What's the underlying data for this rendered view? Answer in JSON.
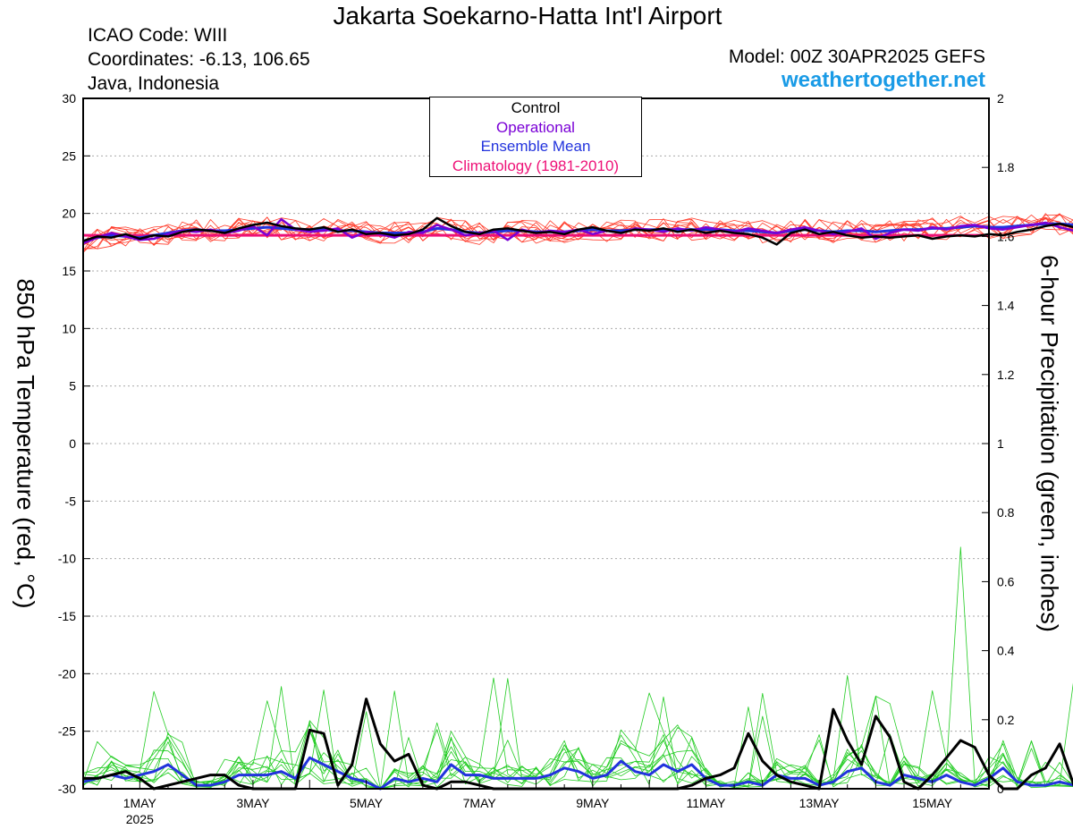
{
  "header": {
    "title": "Jakarta Soekarno-Hatta Int'l Airport",
    "icao": "ICAO Code: WIII",
    "coordinates": "Coordinates: -6.13, 106.65",
    "region": "Java, Indonesia",
    "model": "Model: 00Z 30APR2025 GEFS",
    "site": "weathertogether.net"
  },
  "colors": {
    "control": "#000000",
    "operational": "#7a00d6",
    "ensemble_mean": "#2233dd",
    "climatology": "#ee1177",
    "members_temp": "#ff3b2a",
    "members_precip": "#22cc22",
    "site": "#1a9be6"
  },
  "chart_data": {
    "type": "line",
    "ylabel": "850 hPa Temperature (red, °C)",
    "y2label": "6-hour Precipitation (green, inches)",
    "legend": {
      "placement": "top-center",
      "entries": [
        "Control",
        "Operational",
        "Ensemble Mean",
        "Climatology (1981-2010)"
      ]
    },
    "ylim": [
      -30,
      30
    ],
    "y2lim": [
      0,
      2
    ],
    "yticks": [
      30,
      25,
      20,
      15,
      10,
      5,
      0,
      -5,
      -10,
      -15,
      -20,
      -25,
      -30
    ],
    "y2ticks": [
      2,
      1.8,
      1.6,
      1.4,
      1.2,
      1,
      0.8,
      0.6,
      0.4,
      0.2,
      0
    ],
    "xlim_hours": [
      0,
      384
    ],
    "x_step_hours": 6,
    "grid": "horizontal dotted",
    "xticks": [
      {
        "label": "1MAY",
        "sub": "2025",
        "hour": 24
      },
      {
        "label": "3MAY",
        "sub": "",
        "hour": 72
      },
      {
        "label": "5MAY",
        "sub": "",
        "hour": 120
      },
      {
        "label": "7MAY",
        "sub": "",
        "hour": 168
      },
      {
        "label": "9MAY",
        "sub": "",
        "hour": 216
      },
      {
        "label": "11MAY",
        "sub": "",
        "hour": 264
      },
      {
        "label": "13MAY",
        "sub": "",
        "hour": 312
      },
      {
        "label": "15MAY",
        "sub": "",
        "hour": 360
      }
    ],
    "climatology_temp": 18.1,
    "control_temp": [
      17.6,
      18.0,
      17.9,
      18.2,
      17.8,
      18.1,
      18.0,
      18.4,
      18.6,
      18.5,
      18.3,
      18.7,
      19.0,
      19.2,
      18.9,
      18.7,
      18.6,
      18.8,
      18.4,
      18.6,
      18.2,
      18.3,
      18.1,
      18.2,
      18.6,
      19.6,
      18.9,
      18.4,
      18.2,
      18.6,
      18.7,
      18.5,
      18.3,
      18.4,
      18.2,
      18.6,
      18.8,
      18.5,
      18.3,
      18.6,
      18.5,
      18.7,
      18.4,
      18.6,
      18.3,
      18.5,
      18.3,
      18.2,
      17.9,
      17.3,
      18.3,
      18.6,
      18.2,
      18.4,
      18.1,
      17.9,
      18.0,
      17.9,
      18.0,
      18.1,
      17.8,
      18.0,
      18.1,
      18.0,
      18.2,
      18.1,
      18.4,
      18.6,
      18.9,
      19.1,
      18.8,
      18.7,
      18.9,
      19.2,
      18.6,
      18.4,
      18.8,
      19.0,
      19.3,
      19.0,
      19.1,
      19.3,
      19.4,
      19.2,
      19.5,
      19.1,
      18.9,
      19.2,
      19.0,
      19.4,
      19.1,
      18.9,
      19.4,
      19.6,
      19.4,
      19.0,
      18.7
    ],
    "operational_temp": [
      17.4,
      17.9,
      18.3,
      18.0,
      17.7,
      17.8,
      18.2,
      18.5,
      18.4,
      18.6,
      18.3,
      18.5,
      18.9,
      18.1,
      19.5,
      18.6,
      18.4,
      18.5,
      18.7,
      17.9,
      18.4,
      18.2,
      17.9,
      18.4,
      18.3,
      19.0,
      18.6,
      18.1,
      18.3,
      18.5,
      17.7,
      18.6,
      18.3,
      18.5,
      18.4,
      18.6,
      18.2,
      18.5,
      18.3,
      18.7,
      18.6,
      18.4,
      18.7,
      18.5,
      18.8,
      18.6,
      18.4,
      18.7,
      18.5,
      18.3,
      18.6,
      18.8,
      18.5,
      18.2,
      18.4,
      18.7,
      17.8,
      18.3,
      18.6,
      18.5,
      18.8,
      18.6,
      18.9,
      19.0,
      18.7,
      18.6,
      18.8,
      19.0,
      19.2,
      18.8,
      18.5,
      18.7,
      19.0,
      19.2,
      18.7,
      19.1,
      18.5,
      18.8,
      19.2,
      18.9,
      19.4,
      19.6,
      18.8,
      19.5,
      19.2,
      18.7,
      19.4,
      19.1,
      19.9,
      18.8,
      19.7,
      19.0,
      19.3,
      19.6,
      19.3,
      19.8,
      19.1
    ],
    "ensemble_mean_temp": [
      17.6,
      17.9,
      18.1,
      18.0,
      17.9,
      18.1,
      18.3,
      18.5,
      18.6,
      18.5,
      18.5,
      18.6,
      18.7,
      18.8,
      18.7,
      18.6,
      18.6,
      18.6,
      18.5,
      18.5,
      18.4,
      18.3,
      18.3,
      18.3,
      18.4,
      18.7,
      18.6,
      18.4,
      18.3,
      18.4,
      18.5,
      18.5,
      18.4,
      18.4,
      18.4,
      18.5,
      18.6,
      18.5,
      18.5,
      18.6,
      18.6,
      18.6,
      18.6,
      18.6,
      18.6,
      18.6,
      18.5,
      18.5,
      18.4,
      18.3,
      18.5,
      18.6,
      18.5,
      18.4,
      18.5,
      18.5,
      18.4,
      18.5,
      18.6,
      18.6,
      18.7,
      18.7,
      18.8,
      18.9,
      18.8,
      18.8,
      18.9,
      19.0,
      19.1,
      19.1,
      19.0,
      19.0,
      19.1,
      19.2,
      19.1,
      19.0,
      19.0,
      19.1,
      19.2,
      19.1,
      19.0,
      19.0,
      19.1,
      19.1,
      19.2,
      19.0,
      18.9,
      19.0,
      19.0,
      19.1,
      19.0,
      18.9,
      19.0,
      19.1,
      19.0,
      18.9,
      18.8
    ],
    "control_precip": [
      0.03,
      0.03,
      0.04,
      0.05,
      0.03,
      0.0,
      0.01,
      0.02,
      0.03,
      0.04,
      0.04,
      0.01,
      0.0,
      0.0,
      0.0,
      0.0,
      0.17,
      0.16,
      0.01,
      0.07,
      0.26,
      0.13,
      0.08,
      0.1,
      0.01,
      0.0,
      0.02,
      0.02,
      0.01,
      0.0,
      0.0,
      0.0,
      0.0,
      0.0,
      0.0,
      0.0,
      0.0,
      0.0,
      0.0,
      0.0,
      0.0,
      0.0,
      0.0,
      0.01,
      0.03,
      0.04,
      0.06,
      0.16,
      0.08,
      0.04,
      0.02,
      0.01,
      0.0,
      0.23,
      0.14,
      0.07,
      0.21,
      0.15,
      0.02,
      0.0,
      0.04,
      0.09,
      0.14,
      0.12,
      0.04,
      0.0,
      0.0,
      0.04,
      0.06,
      0.13,
      0.01,
      0.0,
      0.0,
      0.0,
      0.0,
      0.0,
      0.0,
      0.0,
      0.0,
      0.0,
      0.0,
      0.0,
      0.0,
      0.0,
      0.0,
      0.0,
      0.0,
      0.0,
      0.0,
      0.0,
      0.0,
      0.0,
      0.0,
      0.0,
      0.0,
      0.0,
      0.0
    ],
    "ensemble_mean_precip": [
      0.02,
      0.03,
      0.04,
      0.03,
      0.04,
      0.05,
      0.07,
      0.04,
      0.01,
      0.01,
      0.02,
      0.04,
      0.04,
      0.04,
      0.05,
      0.03,
      0.09,
      0.07,
      0.05,
      0.03,
      0.02,
      0.0,
      0.03,
      0.02,
      0.03,
      0.02,
      0.07,
      0.04,
      0.04,
      0.03,
      0.03,
      0.03,
      0.03,
      0.04,
      0.06,
      0.05,
      0.03,
      0.04,
      0.08,
      0.05,
      0.04,
      0.07,
      0.05,
      0.07,
      0.03,
      0.01,
      0.01,
      0.02,
      0.01,
      0.04,
      0.03,
      0.03,
      0.01,
      0.02,
      0.05,
      0.06,
      0.02,
      0.01,
      0.04,
      0.03,
      0.02,
      0.04,
      0.02,
      0.01,
      0.03,
      0.06,
      0.02,
      0.01,
      0.01,
      0.02,
      0.01,
      0.0,
      0.02,
      0.03,
      0.02,
      0.01,
      0.02,
      0.01,
      0.02,
      0.01,
      0.0,
      0.01,
      0.02,
      0.03,
      0.01,
      0.01,
      0.06,
      0.04,
      0.02,
      0.0,
      0.02,
      0.01,
      0.01,
      0.0,
      0.02,
      0.01,
      0.01
    ],
    "member_temp_spread": 1.0,
    "member_precip_max": 0.7,
    "member_count": 10
  }
}
